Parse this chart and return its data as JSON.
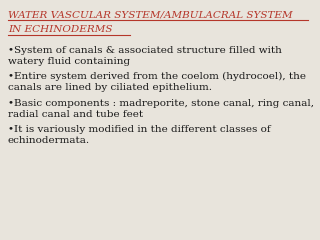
{
  "bg_color": "#e8e4dc",
  "title_line1": "WATER VASCULAR SYSTEM/AMBULACRAL SYSTEM",
  "title_line2": "IN ECHINODERMS",
  "title_color": "#b5362a",
  "title_fontsize": 7.5,
  "body_color": "#1a1a1a",
  "body_fontsize": 7.5,
  "bullets": [
    "•System of canals & associated structure filled with\nwatery fluid containing",
    "•Entire system derived from the coelom (hydrocoel), the\ncanals are lined by ciliated epithelium.",
    "•Basic components : madreporite, stone canal, ring canal,\nradial canal and tube feet",
    "•It is variously modified in the different classes of\nechinodermata."
  ],
  "underline_color": "#b5362a",
  "underline_lw": 0.8
}
